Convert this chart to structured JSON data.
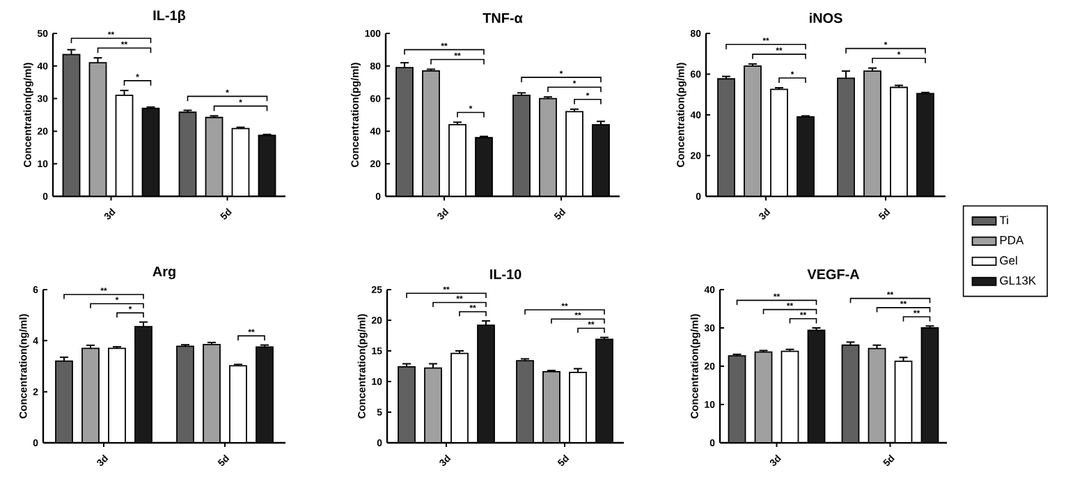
{
  "chart_data": [
    {
      "type": "bar",
      "title": "IL-1β",
      "ylabel": "Concentration(pg/ml)",
      "categories": [
        "3d",
        "5d"
      ],
      "ylim": [
        0,
        50
      ],
      "yticks": [
        0,
        10,
        20,
        30,
        40,
        50
      ],
      "series": [
        {
          "color": "#606060",
          "values": [
            43.5,
            25.8
          ],
          "errors": [
            1.5,
            0.6
          ]
        },
        {
          "color": "#a0a0a0",
          "values": [
            41,
            24.2
          ],
          "errors": [
            1.5,
            0.5
          ]
        },
        {
          "color": "#ffffff",
          "values": [
            31,
            20.8
          ],
          "errors": [
            1.5,
            0.4
          ]
        },
        {
          "color": "#1a1a1a",
          "values": [
            27,
            18.7
          ],
          "errors": [
            0.4,
            0.3
          ]
        }
      ],
      "annotations": [
        "**",
        "**",
        "*",
        "*",
        "*"
      ]
    },
    {
      "type": "bar",
      "title": "TNF-α",
      "ylabel": "Concentration(pg/ml)",
      "categories": [
        "3d",
        "5d"
      ],
      "ylim": [
        0,
        100
      ],
      "yticks": [
        0,
        20,
        40,
        60,
        80,
        100
      ],
      "series": [
        {
          "color": "#606060",
          "values": [
            79,
            62
          ],
          "errors": [
            3,
            1.5
          ]
        },
        {
          "color": "#a0a0a0",
          "values": [
            77,
            60
          ],
          "errors": [
            1,
            1
          ]
        },
        {
          "color": "#ffffff",
          "values": [
            44,
            52
          ],
          "errors": [
            1.5,
            1.5
          ]
        },
        {
          "color": "#1a1a1a",
          "values": [
            36,
            44
          ],
          "errors": [
            0.8,
            2
          ]
        }
      ],
      "annotations": [
        "**",
        "**",
        "*",
        "*",
        "*",
        "*"
      ]
    },
    {
      "type": "bar",
      "title": "iNOS",
      "ylabel": "Concentration(pg/ml)",
      "categories": [
        "3d",
        "5d"
      ],
      "ylim": [
        0,
        80
      ],
      "yticks": [
        0,
        20,
        40,
        60,
        80
      ],
      "series": [
        {
          "color": "#606060",
          "values": [
            57.7,
            58
          ],
          "errors": [
            1.2,
            3.5
          ]
        },
        {
          "color": "#a0a0a0",
          "values": [
            64,
            61.5
          ],
          "errors": [
            1,
            1.5
          ]
        },
        {
          "color": "#ffffff",
          "values": [
            52.5,
            53.5
          ],
          "errors": [
            0.8,
            1
          ]
        },
        {
          "color": "#1a1a1a",
          "values": [
            39,
            50.5
          ],
          "errors": [
            0.5,
            0.5
          ]
        }
      ],
      "annotations": [
        "**",
        "**",
        "*",
        "*",
        "*"
      ]
    },
    {
      "type": "bar",
      "title": "Arg",
      "ylabel": "Concentration(ng/ml)",
      "categories": [
        "3d",
        "5d"
      ],
      "ylim": [
        0,
        6
      ],
      "yticks": [
        0,
        2,
        4,
        6
      ],
      "series": [
        {
          "color": "#606060",
          "values": [
            3.2,
            3.78
          ],
          "errors": [
            0.15,
            0.06
          ]
        },
        {
          "color": "#a0a0a0",
          "values": [
            3.7,
            3.85
          ],
          "errors": [
            0.12,
            0.08
          ]
        },
        {
          "color": "#ffffff",
          "values": [
            3.7,
            3.02
          ],
          "errors": [
            0.06,
            0.05
          ]
        },
        {
          "color": "#1a1a1a",
          "values": [
            4.55,
            3.75
          ],
          "errors": [
            0.18,
            0.08
          ]
        }
      ],
      "annotations": [
        "**",
        "*",
        "*",
        "**"
      ]
    },
    {
      "type": "bar",
      "title": "IL-10",
      "ylabel": "Concentration(pg/ml)",
      "categories": [
        "3d",
        "5d"
      ],
      "ylim": [
        0,
        25
      ],
      "yticks": [
        0,
        5,
        10,
        15,
        20,
        25
      ],
      "series": [
        {
          "color": "#606060",
          "values": [
            12.4,
            13.4
          ],
          "errors": [
            0.5,
            0.3
          ]
        },
        {
          "color": "#a0a0a0",
          "values": [
            12.2,
            11.6
          ],
          "errors": [
            0.7,
            0.2
          ]
        },
        {
          "color": "#ffffff",
          "values": [
            14.6,
            11.5
          ],
          "errors": [
            0.4,
            0.6
          ]
        },
        {
          "color": "#1a1a1a",
          "values": [
            19.2,
            16.9
          ],
          "errors": [
            0.7,
            0.3
          ]
        }
      ],
      "annotations": [
        "**",
        "**",
        "**",
        "**",
        "**",
        "**"
      ]
    },
    {
      "type": "bar",
      "title": "VEGF-A",
      "ylabel": "Concentration(pg/ml)",
      "categories": [
        "3d",
        "5d"
      ],
      "ylim": [
        0,
        40
      ],
      "yticks": [
        0,
        10,
        20,
        30,
        40
      ],
      "legend": "right",
      "series": [
        {
          "name": "Ti",
          "color": "#606060",
          "values": [
            22.7,
            25.5
          ],
          "errors": [
            0.4,
            0.8
          ]
        },
        {
          "name": "PDA",
          "color": "#a0a0a0",
          "values": [
            23.7,
            24.6
          ],
          "errors": [
            0.4,
            0.9
          ]
        },
        {
          "name": "Gel",
          "color": "#ffffff",
          "values": [
            23.9,
            21.3
          ],
          "errors": [
            0.5,
            1.0
          ]
        },
        {
          "name": "GL13K",
          "color": "#1a1a1a",
          "values": [
            29.4,
            30
          ],
          "errors": [
            0.6,
            0.5
          ]
        }
      ],
      "annotations": [
        "**",
        "**",
        "**",
        "**",
        "**",
        "**"
      ]
    }
  ]
}
